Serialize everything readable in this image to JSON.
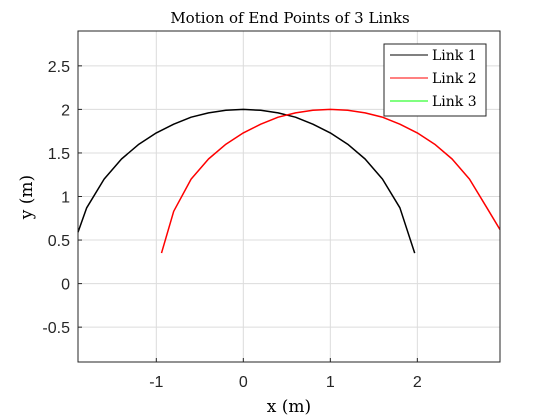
{
  "chart_data": {
    "type": "line",
    "title": "Motion of End Points of 3 Links",
    "xlabel": "x (m)",
    "ylabel": "y (m)",
    "xlim": [
      -1.9,
      2.95
    ],
    "ylim": [
      -0.9,
      2.9
    ],
    "xticks": [
      -1,
      0,
      1,
      2
    ],
    "yticks": [
      -0.5,
      0,
      0.5,
      1,
      1.5,
      2,
      2.5
    ],
    "grid": true,
    "legend_position": "top-right",
    "series": [
      {
        "name": "Link 1",
        "color": "#000000",
        "x": [
          -1.9,
          -1.8,
          -1.6,
          -1.4,
          -1.2,
          -1.0,
          -0.8,
          -0.6,
          -0.4,
          -0.2,
          0.0,
          0.2,
          0.4,
          0.6,
          0.8,
          1.0,
          1.2,
          1.4,
          1.6,
          1.8,
          1.97
        ],
        "y": [
          0.59,
          0.87,
          1.2,
          1.43,
          1.6,
          1.73,
          1.83,
          1.91,
          1.96,
          1.99,
          2.0,
          1.99,
          1.96,
          1.91,
          1.83,
          1.73,
          1.6,
          1.43,
          1.2,
          0.87,
          0.35
        ]
      },
      {
        "name": "Link 2",
        "color": "#ff0000",
        "x": [
          -0.94,
          -0.8,
          -0.6,
          -0.4,
          -0.2,
          0.0,
          0.2,
          0.4,
          0.6,
          0.8,
          1.0,
          1.2,
          1.4,
          1.6,
          1.8,
          2.0,
          2.2,
          2.4,
          2.6,
          2.8,
          2.95
        ],
        "y": [
          0.35,
          0.83,
          1.2,
          1.43,
          1.6,
          1.73,
          1.83,
          1.91,
          1.96,
          1.99,
          2.0,
          1.99,
          1.96,
          1.91,
          1.83,
          1.73,
          1.6,
          1.43,
          1.2,
          0.87,
          0.62
        ]
      },
      {
        "name": "Link 3",
        "color": "#00ff00",
        "x": [],
        "y": []
      }
    ]
  }
}
